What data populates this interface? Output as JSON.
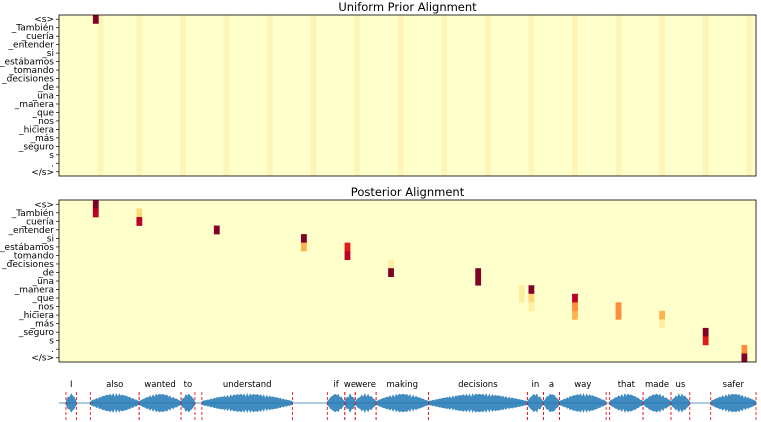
{
  "chart_data": [
    {
      "type": "heatmap",
      "title": "Uniform Prior Alignment",
      "y_tokens": [
        "<s>",
        "_También",
        "_cuería",
        "_entender",
        "_si",
        "_estábamos",
        "_tomando",
        "_decisiones",
        "_de",
        "_una",
        "_manera",
        "_que",
        "_nos",
        "_hiciera",
        "_más",
        "_seguro",
        "s",
        ".",
        "</s>"
      ],
      "n_frames": 144,
      "description_of_values": "first row hot at onset; uniform low probability elsewhere with faint vertical stripes at word boundaries",
      "cells": [
        {
          "row": 0,
          "frame": 7,
          "value": 1.0
        }
      ],
      "stripe_frames": [
        8,
        16,
        25,
        34,
        43,
        52,
        61,
        70,
        79,
        88,
        97,
        106,
        115,
        124,
        133,
        142
      ],
      "colormap": [
        "#ffffcc",
        "#ffeda0",
        "#fed976",
        "#feb24c",
        "#fd8d3c",
        "#fc4e2a",
        "#e31a1c",
        "#bd0026",
        "#800026"
      ]
    },
    {
      "type": "heatmap",
      "title": "Posterior Alignment",
      "y_tokens": [
        "<s>",
        "_También",
        "_cuería",
        "_entender",
        "_si",
        "_estábamos",
        "_tomando",
        "_decisiones",
        "_de",
        "_una",
        "_manera",
        "_que",
        "_nos",
        "_hiciera",
        "_más",
        "_seguro",
        "s",
        ".",
        "</s>"
      ],
      "n_frames": 144,
      "cells": [
        {
          "row": 0,
          "frame": 7,
          "value": 1.0
        },
        {
          "row": 1,
          "frame": 7,
          "value": 0.85
        },
        {
          "row": 1,
          "frame": 16,
          "value": 0.25
        },
        {
          "row": 2,
          "frame": 16,
          "value": 0.9
        },
        {
          "row": 3,
          "frame": 32,
          "value": 1.0
        },
        {
          "row": 4,
          "frame": 50,
          "value": 0.95
        },
        {
          "row": 5,
          "frame": 50,
          "value": 0.4
        },
        {
          "row": 5,
          "frame": 59,
          "value": 0.7
        },
        {
          "row": 6,
          "frame": 59,
          "value": 0.85
        },
        {
          "row": 7,
          "frame": 68,
          "value": 0.1
        },
        {
          "row": 7,
          "frame": 77,
          "value": 0.05
        },
        {
          "row": 8,
          "frame": 68,
          "value": 1.0
        },
        {
          "row": 8,
          "frame": 86,
          "value": 0.95
        },
        {
          "row": 9,
          "frame": 86,
          "value": 0.95
        },
        {
          "row": 10,
          "frame": 95,
          "value": 0.15
        },
        {
          "row": 10,
          "frame": 95,
          "value": 0.15
        },
        {
          "row": 11,
          "frame": 95,
          "value": 0.15
        },
        {
          "row": 10,
          "frame": 97,
          "value": 1.0
        },
        {
          "row": 11,
          "frame": 97,
          "value": 0.25
        },
        {
          "row": 12,
          "frame": 97,
          "value": 0.08
        },
        {
          "row": 11,
          "frame": 106,
          "value": 0.85
        },
        {
          "row": 12,
          "frame": 106,
          "value": 0.55
        },
        {
          "row": 13,
          "frame": 106,
          "value": 0.35
        },
        {
          "row": 12,
          "frame": 115,
          "value": 0.5
        },
        {
          "row": 13,
          "frame": 115,
          "value": 0.55
        },
        {
          "row": 13,
          "frame": 124,
          "value": 0.35
        },
        {
          "row": 14,
          "frame": 124,
          "value": 0.1
        },
        {
          "row": 15,
          "frame": 133,
          "value": 1.0
        },
        {
          "row": 16,
          "frame": 133,
          "value": 0.75
        },
        {
          "row": 17,
          "frame": 141,
          "value": 0.5
        },
        {
          "row": 18,
          "frame": 141,
          "value": 1.0
        }
      ],
      "colormap": [
        "#ffffcc",
        "#ffeda0",
        "#fed976",
        "#feb24c",
        "#fd8d3c",
        "#fc4e2a",
        "#e31a1c",
        "#bd0026",
        "#800026"
      ]
    },
    {
      "type": "line",
      "subtype": "waveform",
      "words": [
        {
          "text": "I",
          "start": 0.01,
          "end": 0.025
        },
        {
          "text": "also",
          "start": 0.045,
          "end": 0.115
        },
        {
          "text": "wanted",
          "start": 0.115,
          "end": 0.175
        },
        {
          "text": "to",
          "start": 0.175,
          "end": 0.195
        },
        {
          "text": "understand",
          "start": 0.205,
          "end": 0.335
        },
        {
          "text": "if",
          "start": 0.385,
          "end": 0.41
        },
        {
          "text": "we",
          "start": 0.41,
          "end": 0.425
        },
        {
          "text": "were",
          "start": 0.425,
          "end": 0.455
        },
        {
          "text": "making",
          "start": 0.455,
          "end": 0.53
        },
        {
          "text": "decisions",
          "start": 0.53,
          "end": 0.672
        },
        {
          "text": "in",
          "start": 0.672,
          "end": 0.695
        },
        {
          "text": "a",
          "start": 0.695,
          "end": 0.718
        },
        {
          "text": "way",
          "start": 0.718,
          "end": 0.785
        },
        {
          "text": "that",
          "start": 0.79,
          "end": 0.838
        },
        {
          "text": "made",
          "start": 0.838,
          "end": 0.878
        },
        {
          "text": "us",
          "start": 0.878,
          "end": 0.905
        },
        {
          "text": "safer",
          "start": 0.935,
          "end": 1.0
        }
      ],
      "color": "#1f77b4",
      "boundary_color": "#e31a1c"
    }
  ]
}
